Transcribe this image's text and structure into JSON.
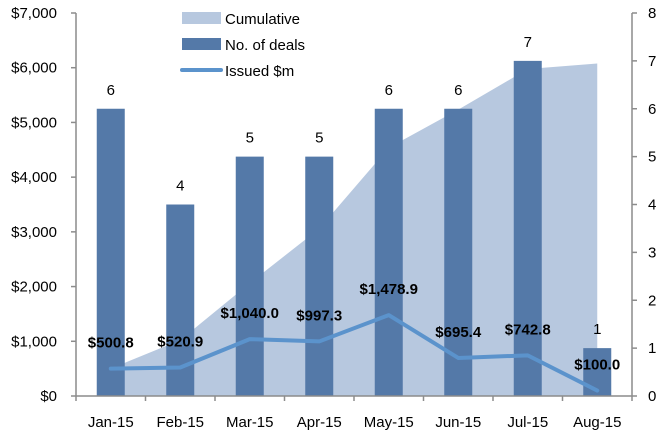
{
  "chart_data": {
    "type": "bar",
    "categories": [
      "Jan-15",
      "Feb-15",
      "Mar-15",
      "Apr-15",
      "May-15",
      "Jun-15",
      "Jul-15",
      "Aug-15"
    ],
    "series": [
      {
        "name": "Cumulative",
        "kind": "area",
        "axis": "left",
        "color": "#b7c8df",
        "values": [
          500.8,
          1021.7,
          2061.7,
          3059.0,
          4537.9,
          5233.3,
          5976.1,
          6076.1
        ]
      },
      {
        "name": "No. of deals",
        "kind": "bar",
        "axis": "right",
        "color": "#5479a8",
        "values": [
          6,
          4,
          5,
          5,
          6,
          6,
          7,
          1
        ],
        "labels": [
          "6",
          "4",
          "5",
          "5",
          "6",
          "6",
          "7",
          "1"
        ]
      },
      {
        "name": "Issued $m",
        "kind": "line",
        "axis": "left",
        "color": "#5b93cc",
        "values": [
          500.8,
          520.9,
          1040.0,
          997.3,
          1478.9,
          695.4,
          742.8,
          100.0
        ],
        "labels": [
          "$500.8",
          "$520.9",
          "$1,040.0",
          "$997.3",
          "$1,478.9",
          "$695.4",
          "$742.8",
          "$100.0"
        ]
      }
    ],
    "left_axis": {
      "ylim": [
        0,
        7000
      ],
      "ticks": [
        "$0",
        "$1,000",
        "$2,000",
        "$3,000",
        "$4,000",
        "$5,000",
        "$6,000",
        "$7,000"
      ]
    },
    "right_axis": {
      "ylim": [
        0,
        8
      ],
      "ticks": [
        "0",
        "1",
        "2",
        "3",
        "4",
        "5",
        "6",
        "7",
        "8"
      ]
    },
    "grid": false,
    "legend": "top-center",
    "title": "",
    "xlabel": "",
    "ylabel": ""
  }
}
